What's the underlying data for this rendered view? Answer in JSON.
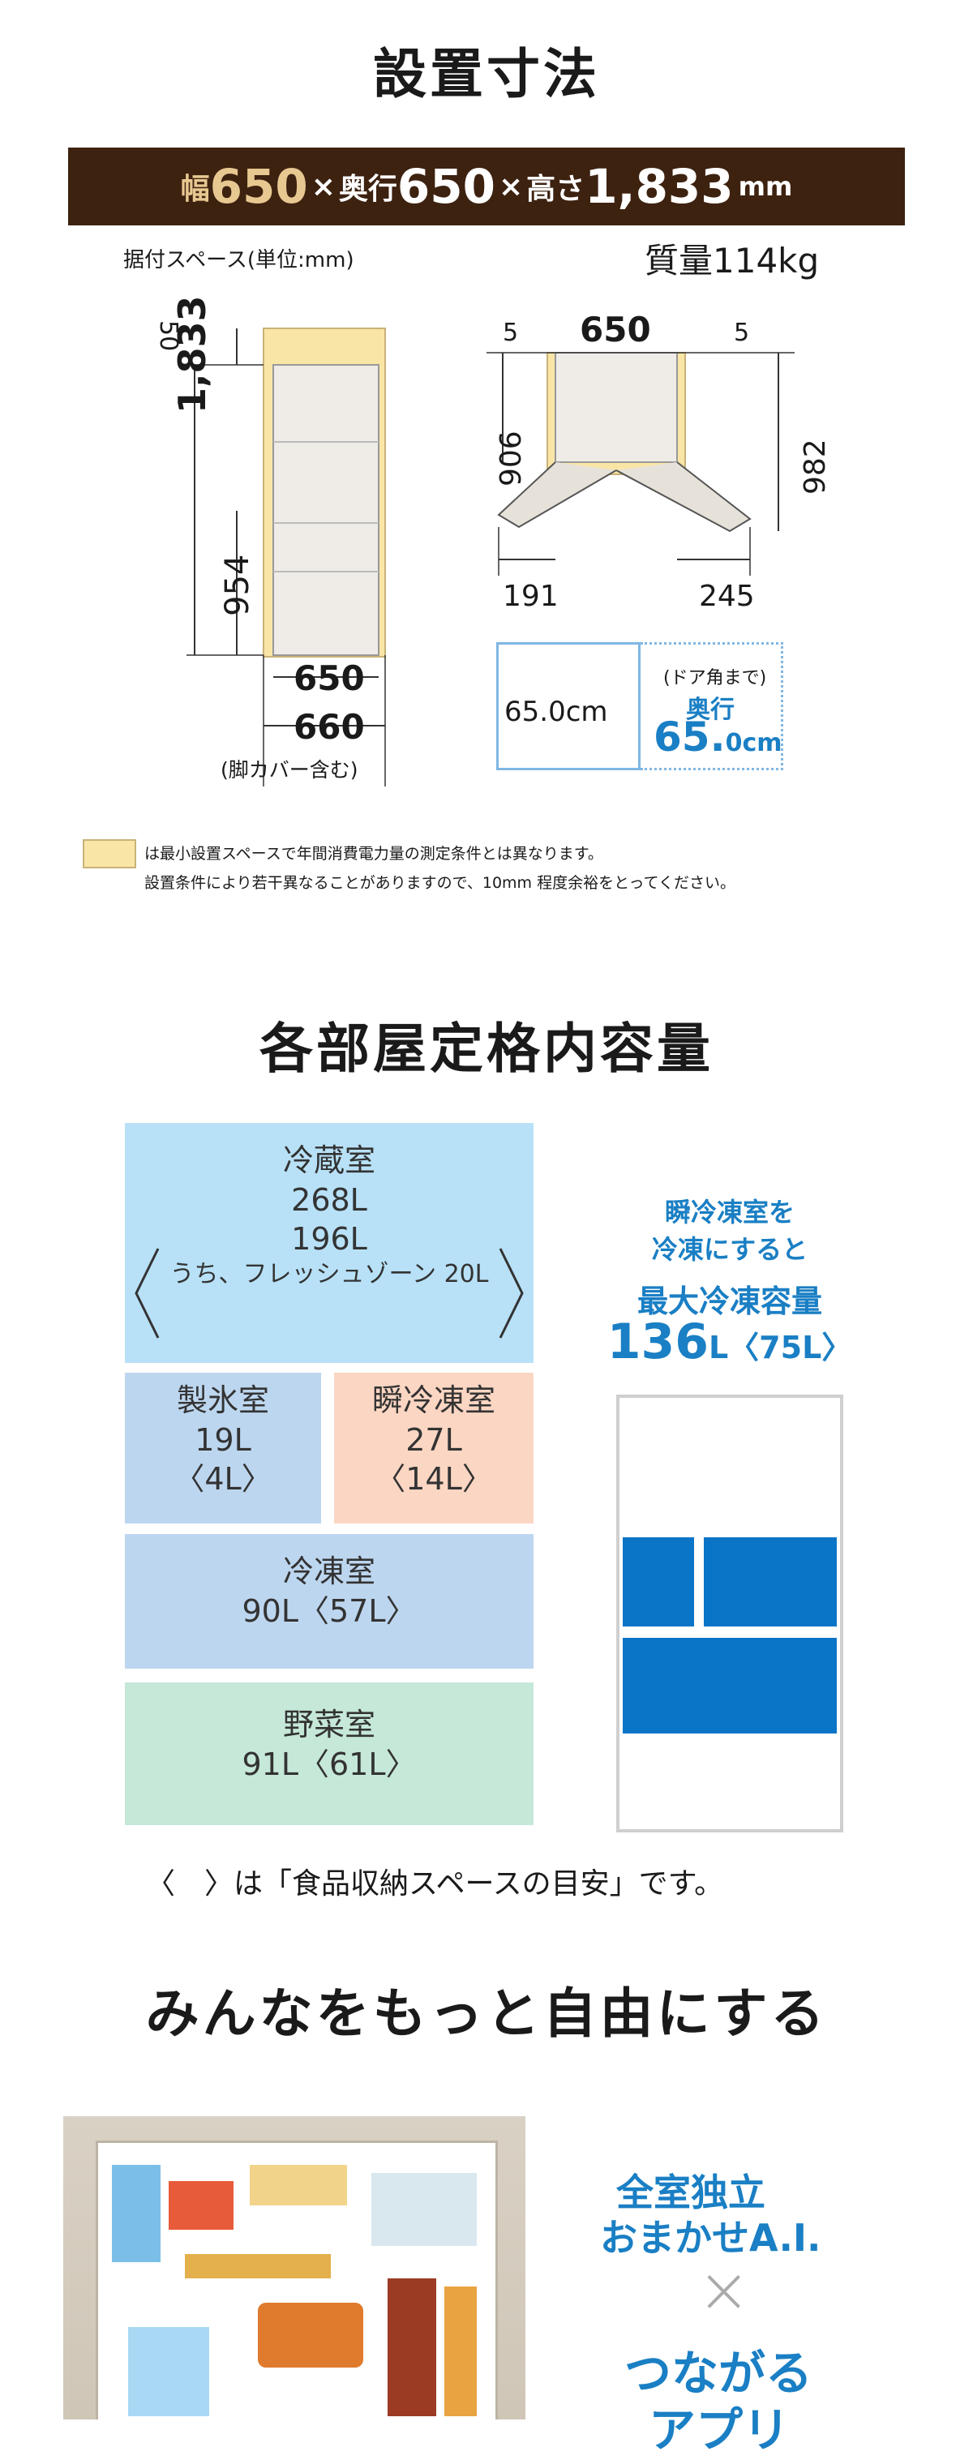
{
  "section1": {
    "title": "設置寸法",
    "banner": {
      "width_label": "幅",
      "width": "650",
      "times1": "×",
      "depth_label": "奥行",
      "depth": "650",
      "times2": "×",
      "height_label": "高さ",
      "height": "1,833",
      "unit": "mm"
    },
    "install_space_label": "据付スペース(単位:mm)",
    "weight_label": "質量114kg",
    "side_view": {
      "top_clear": "50",
      "total_height": "1,833",
      "lower_height": "954",
      "depth_body": "650",
      "depth_with_leg": "660",
      "leg_note": "(脚カバー含む)"
    },
    "top_view": {
      "side_clear_left": "5",
      "width": "650",
      "side_clear_right": "5",
      "depth_closed": "906",
      "depth_open": "982",
      "door_left": "191",
      "door_right": "245"
    },
    "depth_box": {
      "inner": "65.0cm",
      "note": "(ドア角まで)",
      "depth_label": "奥行",
      "depth_value_big": "65.",
      "depth_value_small": "0cm"
    },
    "legend_line1": "は最小設置スペースで年間消費電力量の測定条件とは異なります。",
    "legend_line2": "設置条件により若干異なることがありますので、10mm 程度余裕をとってください。"
  },
  "section2": {
    "title": "各部屋定格内容量",
    "fridge": {
      "name": "冷蔵室",
      "value": "268L",
      "sub": "196L",
      "sub2": "うち、フレッシュゾーン 20L"
    },
    "ice": {
      "name": "製氷室",
      "value": "19L",
      "sub": "〈4L〉"
    },
    "quick": {
      "name": "瞬冷凍室",
      "value": "27L",
      "sub": "〈14L〉"
    },
    "freezer": {
      "name": "冷凍室",
      "value": "90L〈57L〉"
    },
    "vegetable": {
      "name": "野菜室",
      "value": "91L〈61L〉"
    },
    "side_text1": "瞬冷凍室を",
    "side_text2": "冷凍にすると",
    "side_title": "最大冷凍容量",
    "side_value": "136",
    "side_value_unit": "L〈75L〉",
    "footnote": "〈　〉は「食品収納スペースの目安」です。"
  },
  "section3": {
    "title": "みんなをもっと自由にする",
    "tag1": "全室独立",
    "tag2": "おまかせA.I.",
    "times": "×",
    "tag3": "つながる",
    "tag4": "アプリ"
  },
  "colors": {
    "banner_bg": "#3d2210",
    "banner_accent": "#e8c891",
    "accent_blue": "#1a7fc4",
    "install_space": "#f9e6a7"
  }
}
